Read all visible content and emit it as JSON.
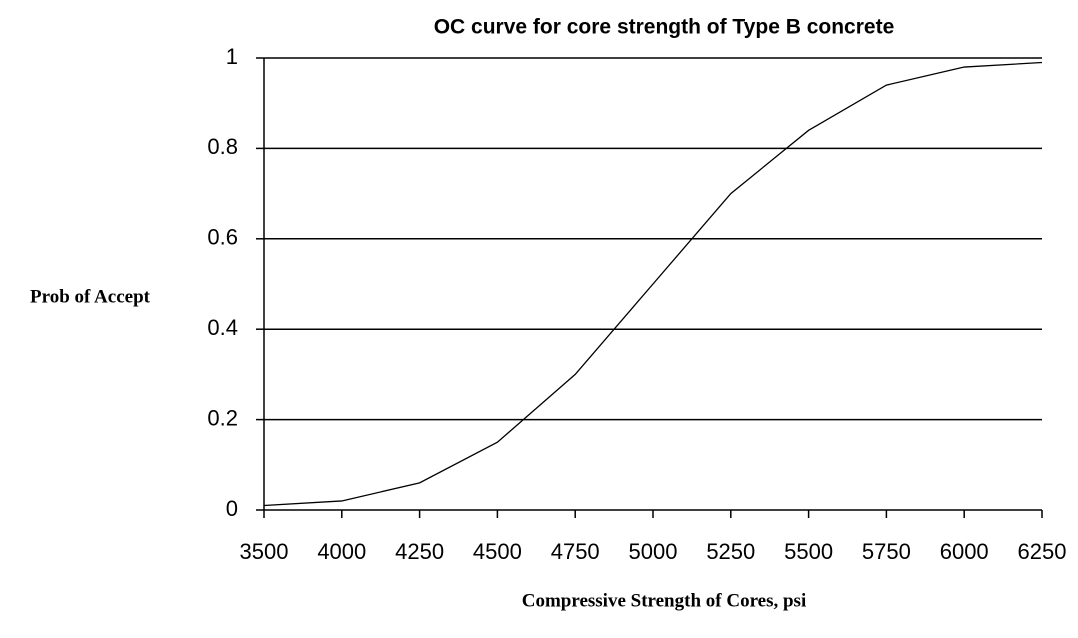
{
  "chart_data": {
    "type": "line",
    "title": "OC curve for core strength of Type B concrete",
    "y_label": "Prob of Accept",
    "x_label": "Compressive Strength of Cores, psi",
    "categories": [
      "3500",
      "4000",
      "4250",
      "4500",
      "4750",
      "5000",
      "5250",
      "5500",
      "5750",
      "6000",
      "6250"
    ],
    "values": [
      0.01,
      0.02,
      0.06,
      0.15,
      0.3,
      0.5,
      0.7,
      0.84,
      0.94,
      0.98,
      0.99
    ],
    "color": "#000000",
    "ylim": [
      0,
      1
    ],
    "yticks": [
      0,
      0.2,
      0.4,
      0.6,
      0.8,
      1
    ],
    "grid": true
  }
}
